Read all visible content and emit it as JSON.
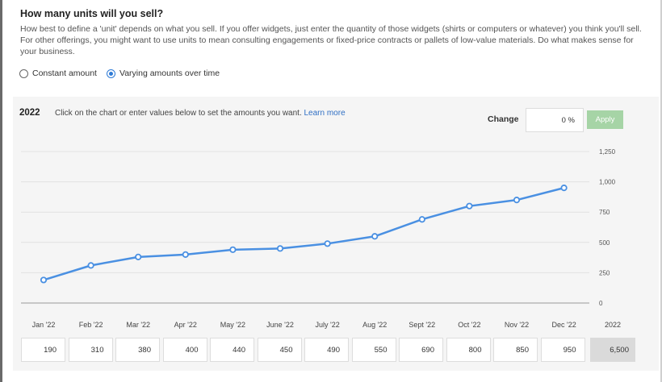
{
  "question": {
    "title": "How many units will you sell?",
    "description": "How best to define a 'unit' depends on what you sell. If you offer widgets, just enter the quantity of those widgets (shirts or computers or whatever) you think you'll sell. For other offerings, you might want to use units to mean consulting engagements or fixed-price contracts or pallets of low-value materials. Do what makes sense for your business."
  },
  "radio_options": [
    {
      "label": "Constant amount",
      "selected": false
    },
    {
      "label": "Varying amounts over time",
      "selected": true
    }
  ],
  "panel": {
    "year": "2022",
    "instructions": "Click on the chart or enter values below to set the amounts you want.",
    "learn_more": "Learn more",
    "change_label": "Change",
    "change_value": "0 %",
    "apply_label": "Apply",
    "total_label": "2022",
    "total_value": "6,500"
  },
  "colors": {
    "line": "#4a90e2",
    "apply_button": "#a6d4a6",
    "radio_selected": "#2f7bd6",
    "link": "#2f6fc4"
  },
  "chart_data": {
    "type": "line",
    "categories": [
      "Jan '22",
      "Feb '22",
      "Mar '22",
      "Apr '22",
      "May '22",
      "June '22",
      "July '22",
      "Aug '22",
      "Sept '22",
      "Oct '22",
      "Nov '22",
      "Dec '22"
    ],
    "series": [
      {
        "values": [
          190,
          310,
          380,
          400,
          440,
          450,
          490,
          550,
          690,
          800,
          850,
          950
        ]
      }
    ],
    "y_ticks": [
      "0",
      "250",
      "500",
      "750",
      "1,000",
      "1,250"
    ],
    "y_tick_values": [
      0,
      250,
      500,
      750,
      1000,
      1250
    ],
    "ylim": [
      0,
      1250
    ],
    "grid": true,
    "y_axis_side": "right"
  },
  "input_values": [
    "190",
    "310",
    "380",
    "400",
    "440",
    "450",
    "490",
    "550",
    "690",
    "800",
    "850",
    "950"
  ]
}
